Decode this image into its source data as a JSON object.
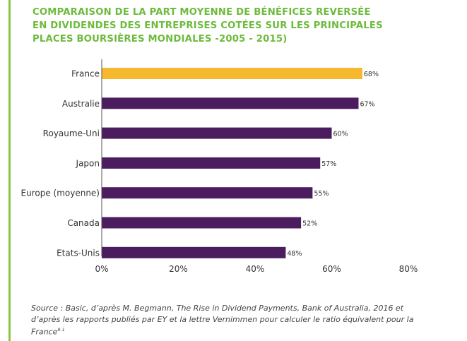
{
  "title": "COMPARAISON DE LA PART MOYENNE DE BÉNÉFICES REVERSÉE\nEN DIVIDENDES DES ENTREPRISES COTÉES SUR LES PRINCIPALES\nPLACES BOURSIÈRES MONDIALES -2005 - 2015)",
  "source": {
    "text": "Source : Basic, d’après M. Begmann, The Rise in Dividend Payments, Bank of Australia, 2016 et d’après les rapports publiés par EY et la lettre Vernimmen pour calculer le ratio équivalent pour la France",
    "note": "8.1"
  },
  "colors": {
    "title": "#6cbb3c",
    "accent_line": "#8cc63f",
    "highlight_bar": "#f5b82e",
    "bar": "#4b1c5e",
    "axis": "#555555"
  },
  "chart_data": {
    "type": "bar",
    "orientation": "horizontal",
    "categories": [
      "France",
      "Australie",
      "Royaume-Uni",
      "Japon",
      "Europe (moyenne)",
      "Canada",
      "Etats-Unis"
    ],
    "values": [
      68,
      67,
      60,
      57,
      55,
      52,
      48
    ],
    "value_labels": [
      "68%",
      "67%",
      "60%",
      "57%",
      "55%",
      "52%",
      "48%"
    ],
    "highlight_category": "France",
    "x_ticks": [
      "0%",
      "20%",
      "40%",
      "60%",
      "80%"
    ],
    "xlim": [
      0,
      80
    ],
    "grid": false,
    "legend": "none"
  }
}
